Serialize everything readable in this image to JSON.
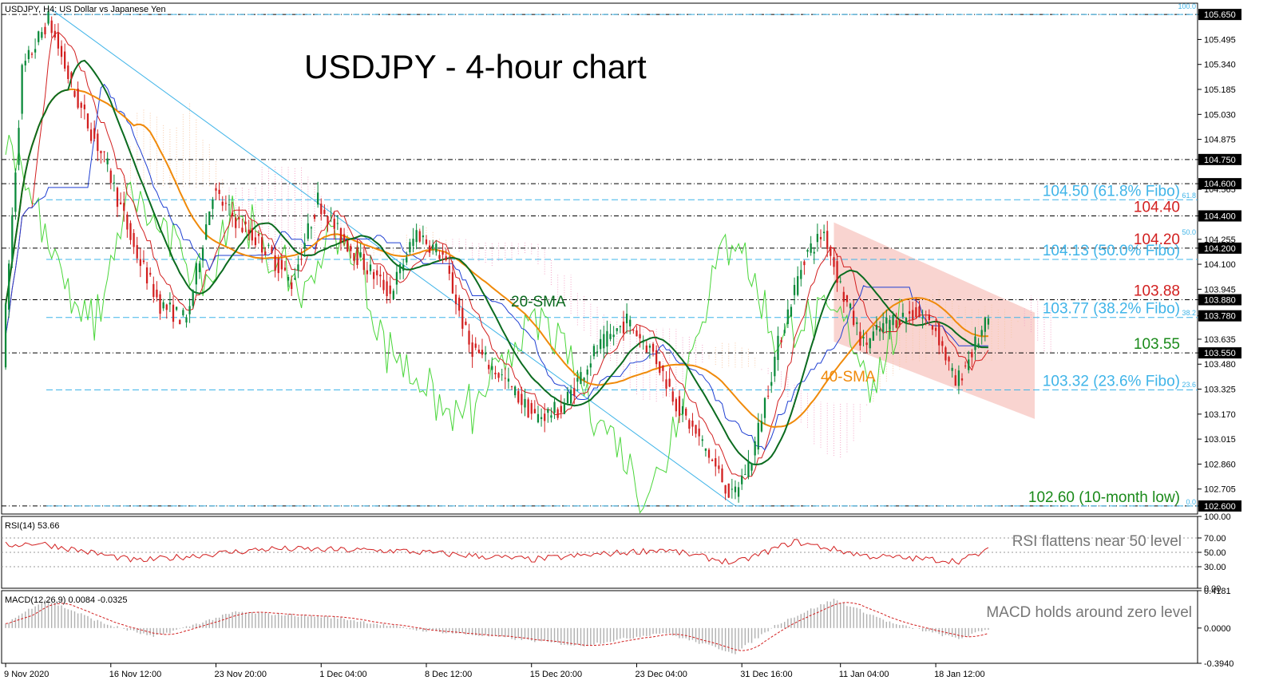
{
  "header": {
    "main": "USDJPY, H4:  US Dollar vs Japanese Yen",
    "rsi": "RSI(14) 53.66",
    "macd": "MACD(12,26,9) 0.0084 -0.0325"
  },
  "title": "USDJPY - 4-hour chart",
  "colors": {
    "up_candle": "#0a8a3a",
    "down_candle": "#d21f1f",
    "sma20": "#0b6b1f",
    "sma40": "#f08a0a",
    "tenkan": "#d21f1f",
    "kijun": "#1f3fd2",
    "chikou": "#4ad63a",
    "cloud": "#f4a6c8",
    "channel": "#f7c6c0",
    "trendline": "#3fb4e8",
    "fibo": "#3fb4e8",
    "rsi": "#d21f1f",
    "macd_signal": "#d21f1f",
    "macd_hist": "#b0b0b0"
  },
  "annotations": {
    "sma20": "20-SMA",
    "sma40": "40-SMA",
    "rsi": "RSI flattens near 50 level",
    "macd": "MACD holds around zero level"
  },
  "fibo_labels": {
    "f100": "100.0",
    "f618": "61.8",
    "f50": "50.0",
    "f382": "38.2",
    "f236": "23.6",
    "f0": "0.0"
  },
  "chart_data": [
    {
      "type": "candlestick",
      "symbol": "USDJPY",
      "timeframe": "H4",
      "ylim": [
        102.55,
        105.72
      ],
      "x_ticks": [
        "9 Nov 2020",
        "16 Nov 12:00",
        "23 Nov 20:00",
        "1 Dec 04:00",
        "8 Dec 12:00",
        "15 Dec 20:00",
        "23 Dec 04:00",
        "31 Dec 16:00",
        "11 Jan 04:00",
        "18 Jan 12:00"
      ],
      "y_ticks": [
        "105.650",
        "105.495",
        "105.340",
        "105.185",
        "105.030",
        "104.875",
        "104.750",
        "104.600",
        "104.565",
        "104.400",
        "104.255",
        "104.200",
        "104.100",
        "103.945",
        "103.880",
        "103.780",
        "103.635",
        "103.550",
        "103.480",
        "103.325",
        "103.170",
        "103.015",
        "102.860",
        "102.705",
        "102.600"
      ],
      "highlighted_levels": [
        "105.650",
        "104.750",
        "104.600",
        "104.400",
        "104.200",
        "103.880",
        "103.780",
        "103.550",
        "102.600"
      ],
      "levels": [
        {
          "value": 104.5,
          "label": "104.50 (61.8% Fibo)",
          "color": "#3fb4e8",
          "style": "fibo"
        },
        {
          "value": 104.4,
          "label": "104.40",
          "color": "#d21f1f",
          "style": "resistance"
        },
        {
          "value": 104.2,
          "label": "104.20",
          "color": "#d21f1f",
          "style": "resistance"
        },
        {
          "value": 104.13,
          "label": "104.13 (50.0% Fibo)",
          "color": "#3fb4e8",
          "style": "fibo"
        },
        {
          "value": 103.88,
          "label": "103.88",
          "color": "#d21f1f",
          "style": "resistance"
        },
        {
          "value": 103.77,
          "label": "103.77 (38.2% Fibo)",
          "color": "#3fb4e8",
          "style": "fibo"
        },
        {
          "value": 103.55,
          "label": "103.55",
          "color": "#1a8a1a",
          "style": "support"
        },
        {
          "value": 103.32,
          "label": "103.32 (23.6% Fibo)",
          "color": "#3fb4e8",
          "style": "fibo"
        },
        {
          "value": 102.6,
          "label": "102.60 (10-month low)",
          "color": "#1a8a1a",
          "style": "support"
        }
      ],
      "dashed_levels": [
        105.65,
        104.75,
        104.6,
        104.4,
        104.2,
        103.88,
        103.55,
        102.6
      ],
      "fibo_levels": [
        105.65,
        104.5,
        104.13,
        103.77,
        103.32,
        102.6
      ],
      "candle_count": 300,
      "anchors": [
        [
          0,
          103.5
        ],
        [
          6,
          105.3
        ],
        [
          14,
          105.62
        ],
        [
          22,
          105.15
        ],
        [
          32,
          104.7
        ],
        [
          40,
          104.2
        ],
        [
          48,
          103.85
        ],
        [
          56,
          103.75
        ],
        [
          64,
          104.55
        ],
        [
          72,
          104.35
        ],
        [
          80,
          104.2
        ],
        [
          88,
          103.98
        ],
        [
          96,
          104.5
        ],
        [
          102,
          104.3
        ],
        [
          110,
          104.1
        ],
        [
          118,
          103.92
        ],
        [
          126,
          104.3
        ],
        [
          134,
          104.15
        ],
        [
          142,
          103.6
        ],
        [
          152,
          103.4
        ],
        [
          162,
          103.15
        ],
        [
          170,
          103.2
        ],
        [
          180,
          103.55
        ],
        [
          190,
          103.75
        ],
        [
          198,
          103.55
        ],
        [
          206,
          103.2
        ],
        [
          214,
          102.95
        ],
        [
          222,
          102.65
        ],
        [
          228,
          102.9
        ],
        [
          236,
          103.6
        ],
        [
          244,
          104.15
        ],
        [
          250,
          104.3
        ],
        [
          256,
          103.9
        ],
        [
          262,
          103.6
        ],
        [
          270,
          103.75
        ],
        [
          278,
          103.8
        ],
        [
          284,
          103.7
        ],
        [
          290,
          103.35
        ],
        [
          296,
          103.6
        ],
        [
          300,
          103.75
        ]
      ]
    },
    {
      "type": "line",
      "name": "RSI(14)",
      "ylim": [
        0,
        100
      ],
      "y_ticks": [
        100.0,
        70.0,
        50.0,
        30.0,
        0.0
      ],
      "anchors": [
        [
          0,
          60
        ],
        [
          10,
          63
        ],
        [
          40,
          38
        ],
        [
          80,
          55
        ],
        [
          120,
          52
        ],
        [
          160,
          40
        ],
        [
          200,
          54
        ],
        [
          222,
          35
        ],
        [
          240,
          65
        ],
        [
          262,
          45
        ],
        [
          290,
          38
        ],
        [
          300,
          54
        ]
      ]
    },
    {
      "type": "bar",
      "name": "MACD(12,26,9)",
      "ylim": [
        -0.394,
        0.4181
      ],
      "y_ticks": [
        0.4181,
        0.0,
        -0.394
      ],
      "anchors": [
        [
          0,
          0.05
        ],
        [
          12,
          0.32
        ],
        [
          30,
          0.05
        ],
        [
          45,
          -0.1
        ],
        [
          70,
          0.18
        ],
        [
          100,
          0.12
        ],
        [
          125,
          -0.02
        ],
        [
          150,
          -0.1
        ],
        [
          175,
          -0.2
        ],
        [
          200,
          -0.05
        ],
        [
          222,
          -0.28
        ],
        [
          235,
          0.05
        ],
        [
          252,
          0.32
        ],
        [
          270,
          0.05
        ],
        [
          290,
          -0.12
        ],
        [
          300,
          0.0
        ]
      ]
    }
  ]
}
